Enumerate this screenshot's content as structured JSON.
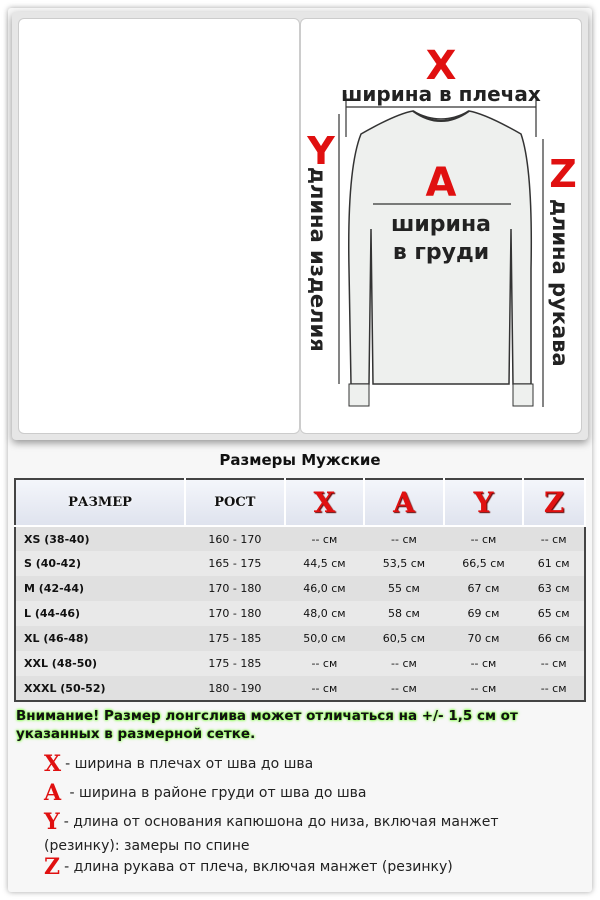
{
  "diagram": {
    "x": "X",
    "x_label": "ширина в плечах",
    "a": "A",
    "a_label1": "ширина",
    "a_label2": "в груди",
    "y": "Y",
    "y_label": "длина изделия",
    "z": "Z",
    "z_label": "длина рукава"
  },
  "title": "Размеры Мужские",
  "table": {
    "headers": [
      "РАЗМЕР",
      "РОСТ",
      "X",
      "A",
      "Y",
      "Z"
    ],
    "rows": [
      [
        "XS (38-40)",
        "160 - 170",
        "--  см",
        "-- см",
        "-- см",
        "-- см"
      ],
      [
        "S (40-42)",
        "165 - 175",
        "44,5 см",
        "53,5 см",
        "66,5 см",
        "61 см"
      ],
      [
        "M (42-44)",
        "170 - 180",
        "46,0 см",
        "55 см",
        "67 см",
        "63 см"
      ],
      [
        "L (44-46)",
        "170 - 180",
        "48,0 см",
        "58 см",
        "69 см",
        "65 см"
      ],
      [
        "XL (46-48)",
        "175 - 185",
        "50,0 см",
        "60,5 см",
        "70 см",
        "66 см"
      ],
      [
        "XXL (48-50)",
        "175 - 185",
        "-- см",
        "-- см",
        "-- см",
        "-- см"
      ],
      [
        "XXXL (50-52)",
        "180 - 190",
        "-- см",
        "-- см",
        "-- см",
        "-- см"
      ]
    ]
  },
  "warning": "Внимание! Размер лонгслива может отличаться на +/- 1,5 см от указанных в размерной сетке.",
  "legend": [
    {
      "letter": "X",
      "text": "- ширина в плечах от шва до шва"
    },
    {
      "letter": "A",
      "text": " - ширина в районе груди от шва до шва"
    },
    {
      "letter": "Y",
      "text": "- длина от основания капюшона до низа, включая манжет (резинку): замеры по спине"
    },
    {
      "letter": "Z",
      "text": "- длина рукава от плеча, включая манжет (резинку)"
    }
  ],
  "colors": {
    "accent": "#e01010",
    "highlight": "#77ff33"
  }
}
